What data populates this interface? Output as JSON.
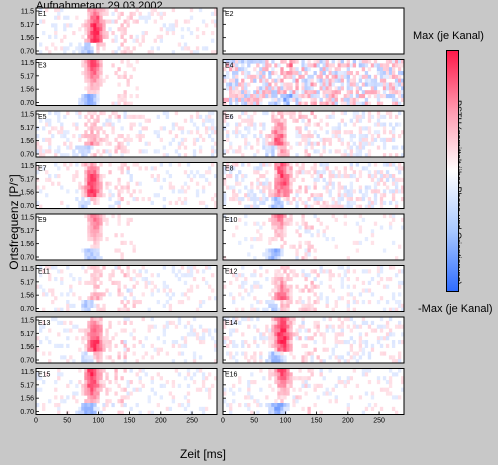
{
  "header": {
    "title": "Aufnahmetag: 29.03.2002"
  },
  "colorbar": {
    "max_label": "Max (je Kanal)",
    "min_label": "-Max (je Kanal)",
    "label": "PSTH (gemittelt über Phase und Orientierung)",
    "colors": {
      "max": "#ff1a4a",
      "mid": "#ffffff",
      "min": "#2f6cff"
    }
  },
  "chart_data": {
    "type": "heatmap",
    "xlabel": "Zeit [ms]",
    "ylabel": "Ortsfrequenz [P/°]",
    "x_ticks": [
      "0",
      "50",
      "100",
      "150",
      "200",
      "250"
    ],
    "x_range": [
      0,
      290
    ],
    "y_ticks": [
      "11.5",
      "5.17",
      "1.56",
      "0.70"
    ],
    "panels": [
      {
        "name": "E1",
        "peak_ms": 95,
        "strength": 0.95,
        "noise": 0.35
      },
      {
        "name": "E2",
        "peak_ms": 0,
        "strength": 0,
        "noise": 0
      },
      {
        "name": "E3",
        "peak_ms": 92,
        "strength": 0.9,
        "noise": 0.2
      },
      {
        "name": "E4",
        "peak_ms": 110,
        "strength": 0.7,
        "noise": 0.9
      },
      {
        "name": "E5",
        "peak_ms": 90,
        "strength": 0.95,
        "noise": 0.4
      },
      {
        "name": "E6",
        "peak_ms": 90,
        "strength": 0.9,
        "noise": 0.45
      },
      {
        "name": "E7",
        "peak_ms": 90,
        "strength": 0.9,
        "noise": 0.35
      },
      {
        "name": "E8",
        "peak_ms": 95,
        "strength": 0.8,
        "noise": 0.5
      },
      {
        "name": "E9",
        "peak_ms": 95,
        "strength": 0.6,
        "noise": 0.2
      },
      {
        "name": "E10",
        "peak_ms": 90,
        "strength": 0.85,
        "noise": 0.3
      },
      {
        "name": "E11",
        "peak_ms": 95,
        "strength": 0.9,
        "noise": 0.35
      },
      {
        "name": "E12",
        "peak_ms": 95,
        "strength": 0.95,
        "noise": 0.35
      },
      {
        "name": "E13",
        "peak_ms": 95,
        "strength": 0.9,
        "noise": 0.35
      },
      {
        "name": "E14",
        "peak_ms": 95,
        "strength": 0.95,
        "noise": 0.4
      },
      {
        "name": "E15",
        "peak_ms": 90,
        "strength": 0.95,
        "noise": 0.35
      },
      {
        "name": "E16",
        "peak_ms": 95,
        "strength": 0.95,
        "noise": 0.35
      }
    ]
  }
}
